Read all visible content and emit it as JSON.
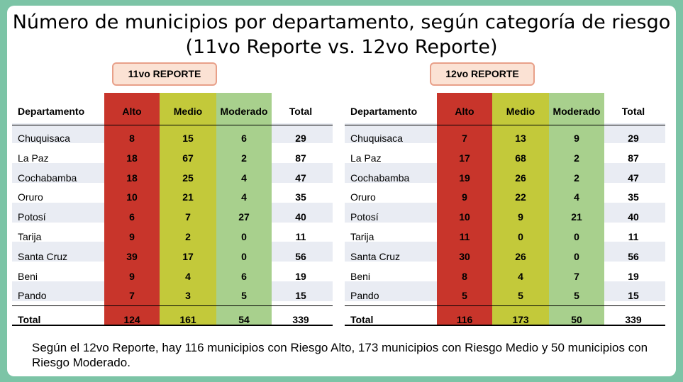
{
  "title_line1": "Número de municipios por departamento, según categoría de riesgo",
  "title_line2": "(11vo Reporte vs. 12vo Reporte)",
  "tables": [
    {
      "label": "11vo REPORTE",
      "headers": [
        "Departamento",
        "Alto",
        "Medio",
        "Moderado",
        "Total"
      ],
      "rows": [
        {
          "dept": "Chuquisaca",
          "alto": "8",
          "medio": "15",
          "moderado": "6",
          "total": "29"
        },
        {
          "dept": "La Paz",
          "alto": "18",
          "medio": "67",
          "moderado": "2",
          "total": "87"
        },
        {
          "dept": "Cochabamba",
          "alto": "18",
          "medio": "25",
          "moderado": "4",
          "total": "47"
        },
        {
          "dept": "Oruro",
          "alto": "10",
          "medio": "21",
          "moderado": "4",
          "total": "35"
        },
        {
          "dept": "Potosí",
          "alto": "6",
          "medio": "7",
          "moderado": "27",
          "total": "40"
        },
        {
          "dept": "Tarija",
          "alto": "9",
          "medio": "2",
          "moderado": "0",
          "total": "11"
        },
        {
          "dept": "Santa Cruz",
          "alto": "39",
          "medio": "17",
          "moderado": "0",
          "total": "56"
        },
        {
          "dept": "Beni",
          "alto": "9",
          "medio": "4",
          "moderado": "6",
          "total": "19"
        },
        {
          "dept": "Pando",
          "alto": "7",
          "medio": "3",
          "moderado": "5",
          "total": "15"
        }
      ],
      "total_row": {
        "dept": "Total",
        "alto": "124",
        "medio": "161",
        "moderado": "54",
        "total": "339"
      }
    },
    {
      "label": "12vo REPORTE",
      "headers": [
        "Departamento",
        "Alto",
        "Medio",
        "Moderado",
        "Total"
      ],
      "rows": [
        {
          "dept": "Chuquisaca",
          "alto": "7",
          "medio": "13",
          "moderado": "9",
          "total": "29"
        },
        {
          "dept": "La Paz",
          "alto": "17",
          "medio": "68",
          "moderado": "2",
          "total": "87"
        },
        {
          "dept": "Cochabamba",
          "alto": "19",
          "medio": "26",
          "moderado": "2",
          "total": "47"
        },
        {
          "dept": "Oruro",
          "alto": "9",
          "medio": "22",
          "moderado": "4",
          "total": "35"
        },
        {
          "dept": "Potosí",
          "alto": "10",
          "medio": "9",
          "moderado": "21",
          "total": "40"
        },
        {
          "dept": "Tarija",
          "alto": "11",
          "medio": "0",
          "moderado": "0",
          "total": "11"
        },
        {
          "dept": "Santa Cruz",
          "alto": "30",
          "medio": "26",
          "moderado": "0",
          "total": "56"
        },
        {
          "dept": "Beni",
          "alto": "8",
          "medio": "4",
          "moderado": "7",
          "total": "19"
        },
        {
          "dept": "Pando",
          "alto": "5",
          "medio": "5",
          "moderado": "5",
          "total": "15"
        }
      ],
      "total_row": {
        "dept": "Total",
        "alto": "116",
        "medio": "173",
        "moderado": "50",
        "total": "339"
      }
    }
  ],
  "footer": "Según el 12vo Reporte, hay 116 municipios con Riesgo Alto, 173 municipios con Riesgo Medio y 50 municipios con Riesgo Moderado.",
  "colors": {
    "alto": "#c8352b",
    "medio": "#c3c93a",
    "moderado": "#a8d08d",
    "row_shade": "#e9ecf3",
    "tag_fill": "#fbe2d4",
    "tag_border": "#e8a089",
    "frame": "#7cc4a6"
  }
}
